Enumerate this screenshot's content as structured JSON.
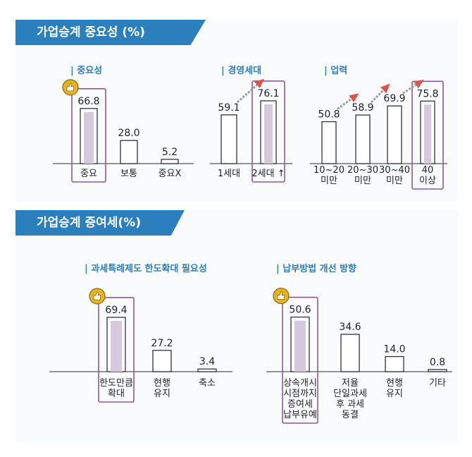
{
  "banners": {
    "importance": "가업승계 중요성 (%)",
    "gift_tax": "가업승계 증여세(%)"
  },
  "colors": {
    "banner": "#2b7fbd",
    "section_title": "#2b7fbd",
    "highlight_box": "#8a5a9b",
    "bar_fill_highlight": "#d7c9dd",
    "arrow": "#d9534f",
    "badge": "#e6b325"
  },
  "chart_data": [
    {
      "type": "bar",
      "title": "| 중요성",
      "categories": [
        "중요",
        "보통",
        "중요X"
      ],
      "values": [
        66.8,
        28.0,
        5.2
      ],
      "value_labels": [
        "66.8",
        "28.0",
        "5.2"
      ],
      "highlight": [
        0
      ],
      "badge": [
        0
      ],
      "ylim": [
        0,
        80
      ]
    },
    {
      "type": "bar",
      "title": "| 경영세대",
      "categories": [
        "1세대",
        "2세대 ↑"
      ],
      "values": [
        59.1,
        76.1
      ],
      "value_labels": [
        "59.1",
        "76.1"
      ],
      "highlight": [
        1
      ],
      "ylim": [
        0,
        100
      ]
    },
    {
      "type": "bar",
      "title": "| 업력",
      "categories": [
        "10~20 미만",
        "20~30 미만",
        "30~40 미만",
        "40 이상"
      ],
      "category_lines": [
        [
          "10~20",
          "미만"
        ],
        [
          "20~30",
          "미만"
        ],
        [
          "30~40",
          "미만"
        ],
        [
          "40",
          "이상"
        ]
      ],
      "values": [
        50.8,
        58.9,
        69.9,
        75.8
      ],
      "value_labels": [
        "50.8",
        "58.9",
        "69.9",
        "75.8"
      ],
      "highlight": [
        3
      ],
      "ylim": [
        0,
        100
      ]
    },
    {
      "type": "bar",
      "title": "| 과세특례제도 한도확대 필요성",
      "categories": [
        "한도만큼 확대",
        "현행 유지",
        "축소"
      ],
      "category_lines": [
        [
          "한도만큼",
          "확대"
        ],
        [
          "현행",
          "유지"
        ],
        [
          "축소"
        ]
      ],
      "values": [
        69.4,
        27.2,
        3.4
      ],
      "value_labels": [
        "69.4",
        "27.2",
        "3.4"
      ],
      "highlight": [
        0
      ],
      "badge": [
        0
      ],
      "ylim": [
        0,
        80
      ]
    },
    {
      "type": "bar",
      "title": "| 납부방법 개선 방향",
      "categories": [
        "상속개시 시점까지 증여세 납부유예",
        "저율 단일과세 후 과세 동결",
        "현행 유지",
        "기타"
      ],
      "category_lines": [
        [
          "상속개시",
          "시점까지",
          "증여세",
          "납부유예"
        ],
        [
          "저율",
          "단일과세",
          "후 과세",
          "동결"
        ],
        [
          "현행",
          "유지"
        ],
        [
          "기타"
        ]
      ],
      "values": [
        50.6,
        34.6,
        14.0,
        0.8
      ],
      "value_labels": [
        "50.6",
        "34.6",
        "14.0",
        "0.8"
      ],
      "highlight": [
        0
      ],
      "badge": [
        0
      ],
      "ylim": [
        0,
        60
      ]
    }
  ]
}
